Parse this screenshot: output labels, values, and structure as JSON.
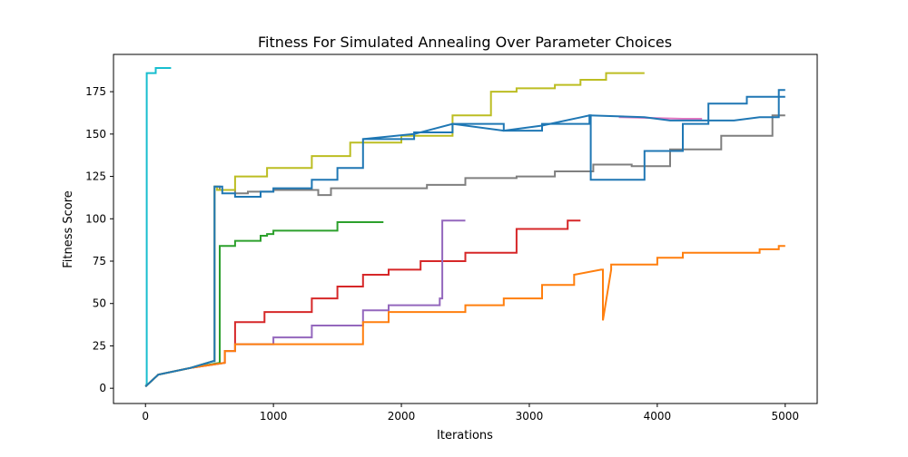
{
  "chart_data": {
    "type": "line",
    "title": "Fitness For Simulated Annealing Over Parameter Choices",
    "xlabel": "Iterations",
    "ylabel": "Fitness Score",
    "xlim": [
      -250,
      5250
    ],
    "ylim": [
      -9,
      197
    ],
    "xticks": [
      0,
      1000,
      2000,
      3000,
      4000,
      5000
    ],
    "yticks": [
      0,
      25,
      50,
      75,
      100,
      125,
      150,
      175
    ],
    "grid": false,
    "legend": "none",
    "series": [
      {
        "color": "#17becf",
        "x": [
          0,
          10,
          10,
          80,
          80,
          200
        ],
        "y": [
          2,
          2,
          186,
          186,
          189,
          189
        ]
      },
      {
        "color": "#2ca02c",
        "x": [
          0,
          100,
          350,
          580,
          580,
          700,
          700,
          900,
          900,
          950,
          950,
          1000,
          1000,
          1500,
          1500,
          1860
        ],
        "y": [
          1,
          8,
          12,
          15,
          84,
          84,
          87,
          87,
          90,
          90,
          91,
          91,
          93,
          93,
          98,
          98
        ]
      },
      {
        "color": "#d62728",
        "x": [
          0,
          100,
          350,
          620,
          620,
          700,
          700,
          930,
          930,
          1300,
          1300,
          1500,
          1500,
          1700,
          1700,
          1900,
          1900,
          2150,
          2150,
          2500,
          2500,
          2900,
          2900,
          3300,
          3300,
          3400
        ],
        "y": [
          1,
          8,
          12,
          15,
          22,
          22,
          39,
          39,
          45,
          45,
          53,
          53,
          60,
          60,
          67,
          67,
          70,
          70,
          75,
          75,
          80,
          80,
          94,
          94,
          99,
          99
        ]
      },
      {
        "color": "#9467bd",
        "x": [
          0,
          100,
          350,
          620,
          620,
          700,
          700,
          1000,
          1000,
          1300,
          1300,
          1700,
          1700,
          1900,
          1900,
          2300,
          2300,
          2320,
          2320,
          2500
        ],
        "y": [
          1,
          8,
          12,
          15,
          22,
          22,
          26,
          26,
          30,
          30,
          37,
          37,
          46,
          46,
          49,
          49,
          53,
          53,
          99,
          99
        ]
      },
      {
        "color": "#ff7f0e",
        "x": [
          0,
          100,
          350,
          620,
          620,
          700,
          700,
          1700,
          1700,
          1900,
          1900,
          2500,
          2500,
          2800,
          2800,
          3100,
          3100,
          3350,
          3350,
          3560,
          3575,
          3575,
          3640,
          3640,
          4000,
          4000,
          4200,
          4200,
          4800,
          4800,
          4950,
          4950,
          5000
        ],
        "y": [
          1,
          8,
          12,
          15,
          22,
          22,
          26,
          26,
          39,
          39,
          45,
          45,
          49,
          49,
          53,
          53,
          61,
          61,
          67,
          70,
          70,
          40,
          70,
          73,
          73,
          77,
          77,
          80,
          80,
          82,
          82,
          84,
          84
        ]
      },
      {
        "color": "#7f7f7f",
        "x": [
          0,
          100,
          350,
          530,
          540,
          540,
          580,
          580,
          700,
          700,
          800,
          800,
          1000,
          1000,
          1350,
          1350,
          1450,
          1450,
          2200,
          2200,
          2500,
          2500,
          2900,
          2900,
          3200,
          3200,
          3500,
          3500,
          3800,
          3800,
          4100,
          4100,
          4500,
          4500,
          4900,
          4900,
          5000
        ],
        "y": [
          1,
          8,
          12,
          16,
          16,
          119,
          119,
          117,
          117,
          115,
          115,
          116,
          116,
          117,
          117,
          114,
          114,
          118,
          118,
          120,
          120,
          124,
          124,
          125,
          125,
          128,
          128,
          132,
          132,
          131,
          131,
          141,
          141,
          149,
          149,
          161,
          161
        ]
      },
      {
        "color": "#e377c2",
        "x": [
          3700,
          3720,
          4200,
          4250,
          4350
        ],
        "y": [
          160,
          160,
          159,
          159,
          159
        ]
      },
      {
        "color": "#bcbd22",
        "x": [
          0,
          100,
          350,
          530,
          540,
          540,
          560,
          560,
          700,
          700,
          950,
          950,
          1300,
          1300,
          1600,
          1600,
          2000,
          2000,
          2400,
          2400,
          2700,
          2700,
          2900,
          2900,
          3200,
          3200,
          3400,
          3400,
          3600,
          3600,
          3900
        ],
        "y": [
          1,
          8,
          12,
          16,
          16,
          119,
          119,
          117,
          117,
          125,
          125,
          130,
          130,
          137,
          137,
          145,
          145,
          149,
          149,
          161,
          161,
          175,
          175,
          177,
          177,
          179,
          179,
          182,
          182,
          186,
          186
        ]
      },
      {
        "color": "#1f77b4",
        "x": [
          0,
          100,
          350,
          530,
          540,
          540,
          600,
          600,
          700,
          700,
          900,
          900,
          1000,
          1000,
          1300,
          1300,
          1500,
          1500,
          1700,
          1700,
          2100,
          2100,
          2400,
          2400,
          2800,
          2800,
          3100,
          3100,
          3470,
          3470,
          3480,
          3480,
          3900,
          3900,
          4200,
          4200,
          4400,
          4400,
          4700,
          4700,
          5000
        ],
        "y": [
          1,
          8,
          12,
          16,
          16,
          119,
          119,
          115,
          115,
          113,
          113,
          116,
          116,
          118,
          118,
          123,
          123,
          130,
          130,
          147,
          147,
          151,
          151,
          156,
          156,
          152,
          152,
          156,
          156,
          161,
          161,
          123,
          123,
          140,
          140,
          156,
          156,
          168,
          168,
          172,
          172
        ]
      },
      {
        "color": "#1f77b4",
        "x": [
          1700,
          2100,
          2400,
          2800,
          3100,
          3470,
          3900,
          4100,
          4300,
          4600,
          4800,
          4950,
          4950,
          5000
        ],
        "y": [
          147,
          150,
          156,
          152,
          155,
          161,
          160,
          158,
          158,
          158,
          160,
          160,
          176,
          176
        ]
      }
    ]
  }
}
